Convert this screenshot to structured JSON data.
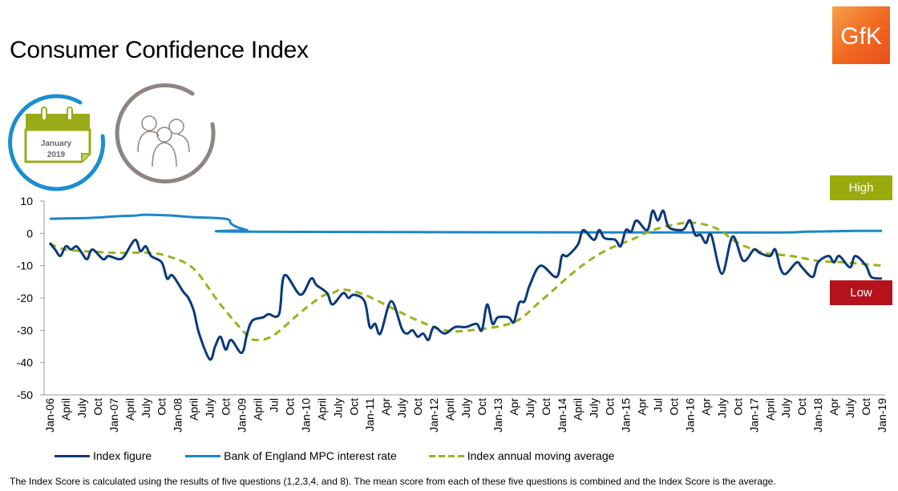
{
  "title": "Consumer Confidence Index",
  "logo_text": "GfK",
  "calendar": {
    "month": "January",
    "year": "2019"
  },
  "badges": {
    "high": "High",
    "low": "Low",
    "high_color": "#9aab0f",
    "low_color": "#b5121b"
  },
  "legend": [
    "Index figure",
    "Bank of England MPC interest rate",
    "Index annual moving average"
  ],
  "footer": "The Index Score is calculated using the results of five questions (1,2,3,4, and 8). The mean score from each of these five questions is combined and the Index Score is the average.",
  "chart_data": {
    "type": "line",
    "title": "Consumer Confidence Index",
    "ylim": [
      -50,
      10
    ],
    "yticks": [
      10,
      0,
      -10,
      -20,
      -30,
      -40,
      -50
    ],
    "xlim": [
      "2006-01",
      "2019-01"
    ],
    "xtick_labels": [
      "Jan-06",
      "April",
      "July",
      "Oct",
      "Jan-07",
      "April",
      "July",
      "Oct",
      "Jan-08",
      "April",
      "July",
      "Oct",
      "Jan-09",
      "April",
      "Jul",
      "Oct",
      "Jan-10",
      "April",
      "July",
      "Oct",
      "Jan-11",
      "Apr",
      "July",
      "Oct",
      "Jan-12",
      "April",
      "July",
      "Oct",
      "Jan-13",
      "Apr",
      "July",
      "Oct",
      "Jan-14",
      "April",
      "July",
      "Oct",
      "Jan-15",
      "Apr",
      "Jul",
      "Oct",
      "Jan-16",
      "Apr",
      "July",
      "Oct",
      "Jan-17",
      "April",
      "July",
      "Oct",
      "Jan-18",
      "Apr",
      "July",
      "Oct",
      "Jan-19"
    ],
    "grid": false,
    "legend_position": "bottom",
    "series": [
      {
        "name": "Index figure",
        "color": "#0a3a78",
        "style": "solid",
        "points": [
          [
            "2006-01",
            -3
          ],
          [
            "2006-02",
            -5
          ],
          [
            "2006-03",
            -7
          ],
          [
            "2006-04",
            -4
          ],
          [
            "2006-05",
            -5
          ],
          [
            "2006-06",
            -4
          ],
          [
            "2006-07",
            -6
          ],
          [
            "2006-08",
            -8
          ],
          [
            "2006-09",
            -5
          ],
          [
            "2006-11",
            -8
          ],
          [
            "2006-12",
            -7
          ],
          [
            "2007-02",
            -8
          ],
          [
            "2007-03",
            -7
          ],
          [
            "2007-05",
            -2
          ],
          [
            "2007-06",
            -5.5
          ],
          [
            "2007-07",
            -4
          ],
          [
            "2007-08",
            -7
          ],
          [
            "2007-10",
            -9
          ],
          [
            "2007-11",
            -14
          ],
          [
            "2007-12",
            -13
          ],
          [
            "2008-02",
            -18
          ],
          [
            "2008-03",
            -20
          ],
          [
            "2008-04",
            -24
          ],
          [
            "2008-05",
            -31
          ],
          [
            "2008-07",
            -39
          ],
          [
            "2008-08",
            -35
          ],
          [
            "2008-09",
            -32
          ],
          [
            "2008-10",
            -36
          ],
          [
            "2008-11",
            -33
          ],
          [
            "2009-01",
            -37
          ],
          [
            "2009-02",
            -31
          ],
          [
            "2009-03",
            -27
          ],
          [
            "2009-05",
            -26
          ],
          [
            "2009-06",
            -25
          ],
          [
            "2009-08",
            -25
          ],
          [
            "2009-09",
            -13
          ],
          [
            "2009-12",
            -19
          ],
          [
            "2010-02",
            -14
          ],
          [
            "2010-03",
            -16
          ],
          [
            "2010-05",
            -18.5
          ],
          [
            "2010-06",
            -22
          ],
          [
            "2010-08",
            -18.5
          ],
          [
            "2010-09",
            -20
          ],
          [
            "2010-10",
            -19
          ],
          [
            "2010-12",
            -21
          ],
          [
            "2011-01",
            -29
          ],
          [
            "2011-02",
            -28
          ],
          [
            "2011-03",
            -31
          ],
          [
            "2011-05",
            -21
          ],
          [
            "2011-07",
            -29.5
          ],
          [
            "2011-08",
            -31
          ],
          [
            "2011-09",
            -30
          ],
          [
            "2011-10",
            -32
          ],
          [
            "2011-11",
            -31
          ],
          [
            "2011-12",
            -33
          ],
          [
            "2012-01",
            -29
          ],
          [
            "2012-03",
            -31
          ],
          [
            "2012-05",
            -29
          ],
          [
            "2012-07",
            -29
          ],
          [
            "2012-09",
            -28
          ],
          [
            "2012-10",
            -30
          ],
          [
            "2012-11",
            -22
          ],
          [
            "2012-12",
            -28
          ],
          [
            "2013-01",
            -26
          ],
          [
            "2013-03",
            -26
          ],
          [
            "2013-04",
            -27.5
          ],
          [
            "2013-05",
            -21.5
          ],
          [
            "2013-06",
            -21
          ],
          [
            "2013-07",
            -16
          ],
          [
            "2013-09",
            -10
          ],
          [
            "2013-12",
            -13.5
          ],
          [
            "2014-01",
            -7
          ],
          [
            "2014-02",
            -7
          ],
          [
            "2014-04",
            -3.5
          ],
          [
            "2014-05",
            1
          ],
          [
            "2014-07",
            -2
          ],
          [
            "2014-08",
            1
          ],
          [
            "2014-09",
            -1.5
          ],
          [
            "2014-11",
            -2
          ],
          [
            "2014-12",
            -4
          ],
          [
            "2015-01",
            1
          ],
          [
            "2015-02",
            0.5
          ],
          [
            "2015-03",
            4
          ],
          [
            "2015-05",
            1
          ],
          [
            "2015-06",
            7
          ],
          [
            "2015-07",
            4
          ],
          [
            "2015-08",
            7
          ],
          [
            "2015-09",
            2
          ],
          [
            "2015-11",
            1
          ],
          [
            "2015-12",
            1.5
          ],
          [
            "2016-01",
            4
          ],
          [
            "2016-02",
            -0.5
          ],
          [
            "2016-03",
            -0.5
          ],
          [
            "2016-04",
            -3
          ],
          [
            "2016-05",
            -0.5
          ],
          [
            "2016-07",
            -12.5
          ],
          [
            "2016-09",
            -1
          ],
          [
            "2016-11",
            -8.5
          ],
          [
            "2017-01",
            -5
          ],
          [
            "2017-02",
            -6
          ],
          [
            "2017-04",
            -7
          ],
          [
            "2017-05",
            -5
          ],
          [
            "2017-06",
            -11
          ],
          [
            "2017-07",
            -12.5
          ],
          [
            "2017-09",
            -9
          ],
          [
            "2017-10",
            -10.5
          ],
          [
            "2017-12",
            -13.5
          ],
          [
            "2018-01",
            -9
          ],
          [
            "2018-03",
            -7
          ],
          [
            "2018-04",
            -9
          ],
          [
            "2018-05",
            -7
          ],
          [
            "2018-07",
            -10.5
          ],
          [
            "2018-08",
            -7
          ],
          [
            "2018-10",
            -10
          ],
          [
            "2018-11",
            -13.5
          ],
          [
            "2019-01",
            -14
          ]
        ]
      },
      {
        "name": "Bank of England MPC interest rate",
        "color": "#1b87c9",
        "style": "solid",
        "points": [
          [
            "2006-01",
            4.5
          ],
          [
            "2006-08",
            4.75
          ],
          [
            "2006-11",
            5
          ],
          [
            "2007-01",
            5.25
          ],
          [
            "2007-05",
            5.5
          ],
          [
            "2007-07",
            5.75
          ],
          [
            "2007-12",
            5.5
          ],
          [
            "2008-02",
            5.25
          ],
          [
            "2008-04",
            5
          ],
          [
            "2008-10",
            4.5
          ],
          [
            "2008-11",
            3
          ],
          [
            "2008-12",
            2
          ],
          [
            "2009-01",
            1.5
          ],
          [
            "2009-02",
            1
          ],
          [
            "2009-03",
            0.5
          ],
          [
            "2016-08",
            0.25
          ],
          [
            "2017-11",
            0.5
          ],
          [
            "2018-08",
            0.75
          ],
          [
            "2019-01",
            0.75
          ]
        ]
      },
      {
        "name": "Index annual moving average",
        "color": "#9cb21b",
        "style": "dashed",
        "points": [
          [
            "2006-01",
            -3
          ],
          [
            "2006-04",
            -5
          ],
          [
            "2007-01",
            -6
          ],
          [
            "2007-07",
            -6
          ],
          [
            "2007-11",
            -7
          ],
          [
            "2008-04",
            -11
          ],
          [
            "2008-09",
            -22
          ],
          [
            "2009-02",
            -31.5
          ],
          [
            "2009-04",
            -33
          ],
          [
            "2009-07",
            -31.5
          ],
          [
            "2009-12",
            -24.5
          ],
          [
            "2010-04",
            -19.5
          ],
          [
            "2010-06",
            -18.5
          ],
          [
            "2010-08",
            -17.4
          ],
          [
            "2010-12",
            -19
          ],
          [
            "2011-05",
            -23
          ],
          [
            "2011-10",
            -27
          ],
          [
            "2012-03",
            -30
          ],
          [
            "2012-08",
            -30
          ],
          [
            "2013-04",
            -27.5
          ],
          [
            "2013-09",
            -21
          ],
          [
            "2014-04",
            -11
          ],
          [
            "2014-09",
            -5.5
          ],
          [
            "2015-02",
            -2
          ],
          [
            "2015-07",
            1.5
          ],
          [
            "2016-01",
            3.3
          ],
          [
            "2016-06",
            1.5
          ],
          [
            "2016-10",
            -3
          ],
          [
            "2017-03",
            -6
          ],
          [
            "2017-08",
            -7
          ],
          [
            "2018-01",
            -8.5
          ],
          [
            "2018-06",
            -9
          ],
          [
            "2019-01",
            -10
          ]
        ]
      }
    ]
  }
}
